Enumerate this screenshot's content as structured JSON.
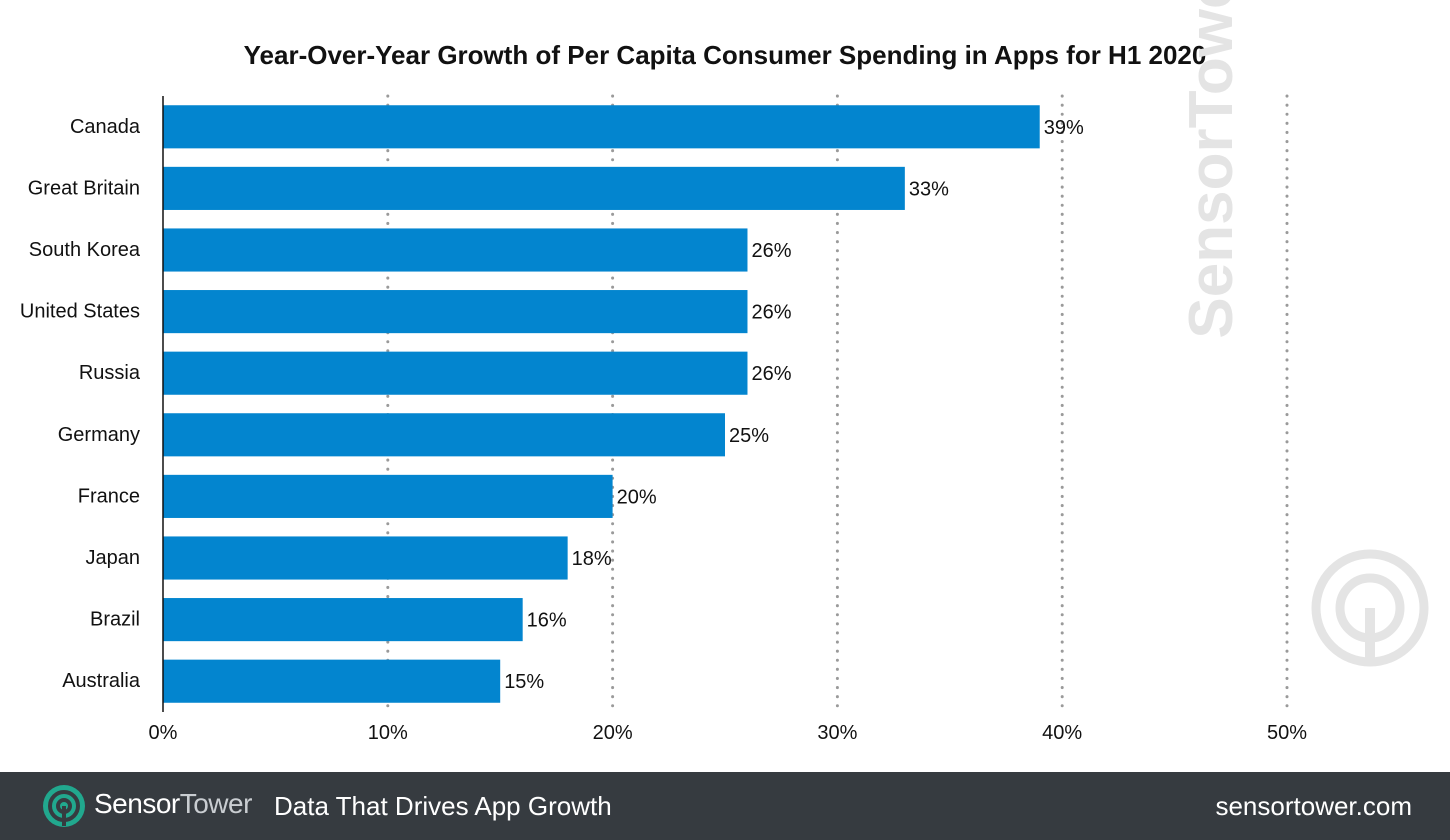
{
  "chart_data": {
    "type": "bar",
    "orientation": "horizontal",
    "title": "Year-Over-Year Growth of Per Capita Consumer Spending in Apps for H1 2020",
    "categories": [
      "Canada",
      "Great Britain",
      "South Korea",
      "United States",
      "Russia",
      "Germany",
      "France",
      "Japan",
      "Brazil",
      "Australia"
    ],
    "values": [
      39,
      33,
      26,
      26,
      26,
      25,
      20,
      18,
      16,
      15
    ],
    "value_labels": [
      "39%",
      "33%",
      "26%",
      "26%",
      "26%",
      "25%",
      "20%",
      "18%",
      "16%",
      "15%"
    ],
    "x_ticks": [
      0,
      10,
      20,
      30,
      40,
      50
    ],
    "x_tick_labels": [
      "0%",
      "10%",
      "20%",
      "30%",
      "40%",
      "50%"
    ],
    "xlim": [
      0,
      50
    ],
    "xlabel": "",
    "ylabel": "",
    "grid": "vertical-dotted",
    "bar_color": "#0385cf"
  },
  "watermark": {
    "text": "SensorTower"
  },
  "footer": {
    "brand": "Sensor",
    "brand_accent": "Tower",
    "tagline": "Data That Drives App Growth",
    "url": "sensortower.com",
    "background": "#363b40",
    "icon_color": "#21a88e"
  }
}
